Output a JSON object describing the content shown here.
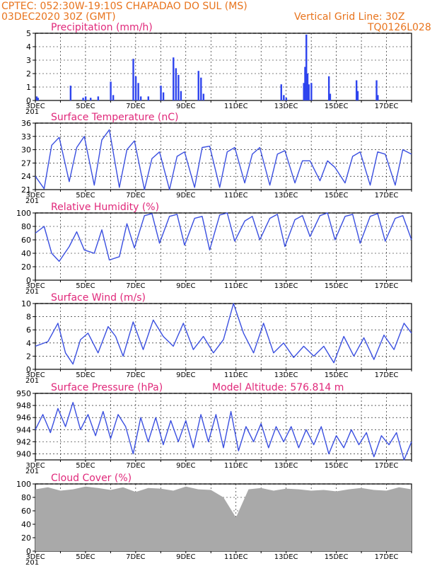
{
  "header": {
    "line1": "CPTEC:   052:30W-19:10S   CHAPADAO DO SUL (MS)",
    "line2": "03DEC2020 30Z (GMT)",
    "grid_note": "Vertical Grid Line: 30Z",
    "code": "TQ0126L028"
  },
  "xaxis": {
    "tick_labels": [
      "3DEC",
      "5DEC",
      "7DEC",
      "9DEC",
      "11DEC",
      "13DEC",
      "15DEC",
      "17DEC"
    ],
    "under_label": "201",
    "range_days": [
      3,
      18
    ]
  },
  "colors": {
    "line": "#3a4fe0",
    "bar": "#2e44ee",
    "cloud": "#a9a9a9",
    "grid": "#000000"
  },
  "chart_data": [
    {
      "type": "bar",
      "title": "Precipitation (mm/h)",
      "ylim": [
        0,
        5
      ],
      "yticks": [
        "0",
        "1",
        "2",
        "3",
        "4",
        "5"
      ],
      "x": [
        3.05,
        3.1,
        4.4,
        4.9,
        5.0,
        5.2,
        5.5,
        6.0,
        6.1,
        6.9,
        7.0,
        7.1,
        7.2,
        7.5,
        8.0,
        8.1,
        8.5,
        8.6,
        8.7,
        8.8,
        9.5,
        9.6,
        9.7,
        12.8,
        12.9,
        13.0,
        13.7,
        13.75,
        13.8,
        13.85,
        13.9,
        14.0,
        14.7,
        14.75,
        15.8,
        15.85,
        16.6,
        16.65
      ],
      "values": [
        0.3,
        0.2,
        1.1,
        0.2,
        0.3,
        0.2,
        0.3,
        1.4,
        0.4,
        3.1,
        1.8,
        1.3,
        0.3,
        0.3,
        1.1,
        0.6,
        3.2,
        2.4,
        1.9,
        0.7,
        2.2,
        1.7,
        0.5,
        1.2,
        0.4,
        0.2,
        1.3,
        2.5,
        4.9,
        2.0,
        1.2,
        1.3,
        1.8,
        0.5,
        1.5,
        0.7,
        1.5,
        0.4
      ]
    },
    {
      "type": "line",
      "title": "Surface Temperature (nC)",
      "ylim": [
        21,
        36
      ],
      "yticks": [
        "21",
        "24",
        "27",
        "30",
        "33",
        "36"
      ],
      "x": [
        3.0,
        3.35,
        3.65,
        3.95,
        4.35,
        4.65,
        4.95,
        5.35,
        5.65,
        5.95,
        6.35,
        6.65,
        6.95,
        7.35,
        7.65,
        7.95,
        8.35,
        8.65,
        8.95,
        9.35,
        9.65,
        9.95,
        10.35,
        10.65,
        10.95,
        11.35,
        11.65,
        11.95,
        12.35,
        12.65,
        12.95,
        13.35,
        13.65,
        13.95,
        14.35,
        14.65,
        14.95,
        15.35,
        15.65,
        15.95,
        16.35,
        16.65,
        16.95,
        17.35,
        17.65,
        18.0
      ],
      "values": [
        24.0,
        21.2,
        31.0,
        32.8,
        22.8,
        30.5,
        33.0,
        22.0,
        32.2,
        34.5,
        21.5,
        30.0,
        32.0,
        21.0,
        28.0,
        29.5,
        21.0,
        28.5,
        29.5,
        21.5,
        30.5,
        30.8,
        21.5,
        29.5,
        30.5,
        22.5,
        29.0,
        30.5,
        22.0,
        29.0,
        29.8,
        22.5,
        27.5,
        27.5,
        23.0,
        27.5,
        26.0,
        22.5,
        28.5,
        29.5,
        22.0,
        29.5,
        29.0,
        22.0,
        30.0,
        29.0
      ]
    },
    {
      "type": "line",
      "title": "Relative Humidity (%)",
      "ylim": [
        0,
        100
      ],
      "yticks": [
        "0",
        "20",
        "40",
        "60",
        "80",
        "100"
      ],
      "x": [
        3.0,
        3.35,
        3.65,
        3.95,
        4.35,
        4.65,
        4.95,
        5.35,
        5.65,
        5.95,
        6.35,
        6.65,
        6.95,
        7.35,
        7.65,
        7.95,
        8.35,
        8.65,
        8.95,
        9.35,
        9.65,
        9.95,
        10.35,
        10.65,
        10.95,
        11.35,
        11.65,
        11.95,
        12.35,
        12.65,
        12.95,
        13.35,
        13.65,
        13.95,
        14.35,
        14.65,
        14.95,
        15.35,
        15.65,
        15.95,
        16.35,
        16.65,
        16.95,
        17.35,
        17.65,
        18.0
      ],
      "values": [
        70,
        80,
        40,
        28,
        50,
        72,
        45,
        40,
        75,
        30,
        35,
        84,
        48,
        96,
        99,
        55,
        95,
        98,
        52,
        92,
        95,
        45,
        97,
        100,
        58,
        88,
        95,
        60,
        92,
        98,
        50,
        90,
        96,
        65,
        96,
        100,
        60,
        95,
        98,
        55,
        95,
        99,
        58,
        92,
        96,
        60
      ]
    },
    {
      "type": "line",
      "title": "Surface Wind (m/s)",
      "ylim": [
        0,
        10
      ],
      "yticks": [
        "0",
        "2",
        "4",
        "6",
        "8",
        "10"
      ],
      "x": [
        3.0,
        3.5,
        3.9,
        4.2,
        4.5,
        4.8,
        5.1,
        5.5,
        5.9,
        6.2,
        6.5,
        6.9,
        7.3,
        7.7,
        8.1,
        8.5,
        8.9,
        9.3,
        9.7,
        10.1,
        10.5,
        10.9,
        11.3,
        11.7,
        12.1,
        12.5,
        12.9,
        13.3,
        13.7,
        14.1,
        14.5,
        14.9,
        15.3,
        15.7,
        16.1,
        16.5,
        16.9,
        17.3,
        17.7,
        18.0
      ],
      "values": [
        3.5,
        4.2,
        7.0,
        2.5,
        0.8,
        4.5,
        5.5,
        2.5,
        6.5,
        5.0,
        2.0,
        7.2,
        3.0,
        7.5,
        5.0,
        3.5,
        7.0,
        3.0,
        5.0,
        2.5,
        4.5,
        10.0,
        5.5,
        2.5,
        7.0,
        2.5,
        4.0,
        1.8,
        3.5,
        2.0,
        3.5,
        1.0,
        5.0,
        2.0,
        4.8,
        1.5,
        5.2,
        3.0,
        7.0,
        5.5
      ]
    },
    {
      "type": "line",
      "title": "Surface Pressure (hPa)",
      "annotation": "Model Altitude: 576.814 m",
      "ylim": [
        939,
        950
      ],
      "yticks": [
        "940",
        "942",
        "944",
        "946",
        "948",
        "950"
      ],
      "x": [
        3.0,
        3.3,
        3.6,
        3.9,
        4.2,
        4.5,
        4.8,
        5.1,
        5.4,
        5.7,
        6.0,
        6.3,
        6.6,
        6.9,
        7.2,
        7.5,
        7.8,
        8.1,
        8.4,
        8.7,
        9.0,
        9.3,
        9.6,
        9.9,
        10.2,
        10.5,
        10.8,
        11.1,
        11.4,
        11.7,
        12.0,
        12.3,
        12.6,
        12.9,
        13.2,
        13.5,
        13.8,
        14.1,
        14.4,
        14.7,
        15.0,
        15.3,
        15.6,
        15.9,
        16.2,
        16.5,
        16.8,
        17.1,
        17.4,
        17.7,
        18.0
      ],
      "values": [
        944.0,
        946.5,
        943.5,
        947.5,
        944.5,
        948.5,
        944.0,
        946.5,
        943.0,
        947.0,
        942.5,
        946.5,
        944.5,
        940.0,
        946.0,
        942.0,
        946.0,
        941.5,
        945.5,
        942.0,
        945.5,
        941.0,
        946.5,
        942.0,
        946.5,
        941.0,
        947.0,
        940.5,
        944.5,
        942.0,
        945.0,
        941.0,
        944.5,
        942.0,
        944.5,
        941.0,
        944.0,
        941.5,
        944.5,
        940.0,
        943.0,
        941.0,
        944.0,
        941.5,
        943.5,
        939.5,
        943.0,
        941.5,
        943.5,
        939.0,
        942.0
      ]
    },
    {
      "type": "area",
      "title": "Cloud Cover (%)",
      "ylim": [
        0,
        100
      ],
      "yticks": [
        "0",
        "20",
        "40",
        "60",
        "80",
        "100"
      ],
      "x": [
        3.0,
        3.5,
        4.0,
        4.5,
        5.0,
        5.5,
        6.0,
        6.5,
        7.0,
        7.5,
        8.0,
        8.5,
        9.0,
        9.5,
        10.0,
        10.5,
        11.0,
        11.5,
        12.0,
        12.5,
        13.0,
        13.5,
        14.0,
        14.5,
        15.0,
        15.5,
        16.0,
        16.5,
        17.0,
        17.5,
        18.0
      ],
      "values": [
        92,
        95,
        90,
        92,
        96,
        94,
        91,
        95,
        88,
        94,
        93,
        90,
        96,
        92,
        91,
        80,
        50,
        92,
        94,
        90,
        93,
        92,
        90,
        91,
        89,
        92,
        94,
        91,
        90,
        95,
        92
      ]
    }
  ]
}
